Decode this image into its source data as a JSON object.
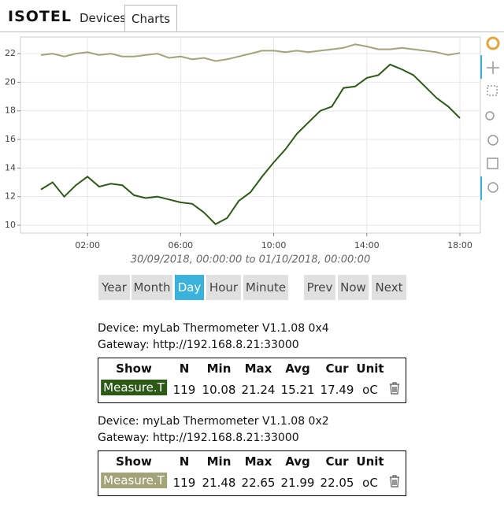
{
  "header": {
    "logo": "ISOTEL",
    "tabs": [
      "Devices",
      "Charts"
    ],
    "active_tab": 1
  },
  "chart_data": {
    "type": "line",
    "subtitle": "30/09/2018, 00:00:00 to 01/10/2018, 00:00:00",
    "x": [
      0,
      0.5,
      1,
      1.5,
      2,
      2.5,
      3,
      3.5,
      4,
      4.5,
      5,
      5.5,
      6,
      6.5,
      7,
      7.5,
      8,
      8.5,
      9,
      9.5,
      10,
      10.5,
      11,
      11.5,
      12,
      12.5,
      13,
      13.5,
      14,
      14.5,
      15,
      15.5,
      16,
      16.5,
      17,
      17.5,
      18
    ],
    "series": [
      {
        "color": "#2c5a16",
        "values": [
          12.5,
          13.0,
          12.0,
          12.8,
          13.4,
          12.7,
          12.9,
          12.8,
          12.1,
          11.9,
          12.0,
          11.8,
          11.6,
          11.5,
          10.9,
          10.08,
          10.5,
          11.7,
          12.3,
          13.4,
          14.4,
          15.3,
          16.4,
          17.2,
          18.0,
          18.3,
          19.6,
          19.7,
          20.3,
          20.5,
          21.24,
          20.9,
          20.5,
          19.7,
          18.9,
          18.3,
          17.49
        ]
      },
      {
        "color": "#a3a37a",
        "values": [
          21.9,
          22.0,
          21.8,
          22.0,
          22.1,
          21.9,
          22.0,
          21.8,
          21.8,
          21.9,
          22.0,
          21.7,
          21.8,
          21.6,
          21.7,
          21.48,
          21.6,
          21.8,
          22.0,
          22.2,
          22.2,
          22.1,
          22.2,
          22.1,
          22.2,
          22.3,
          22.4,
          22.65,
          22.5,
          22.3,
          22.3,
          22.4,
          22.3,
          22.2,
          22.1,
          21.9,
          22.05
        ]
      }
    ],
    "xlim": [
      -0.88,
      18.88
    ],
    "xticks": [
      {
        "value": 2,
        "label": "02:00"
      },
      {
        "value": 6,
        "label": "06:00"
      },
      {
        "value": 10,
        "label": "10:00"
      },
      {
        "value": 14,
        "label": "14:00"
      },
      {
        "value": 18,
        "label": "18:00"
      }
    ],
    "ylim": [
      9.45,
      23.16
    ],
    "yticks": [
      10,
      12,
      14,
      16,
      18,
      20,
      22
    ],
    "grid": true
  },
  "range_buttons": [
    "Year",
    "Month",
    "Day",
    "Hour",
    "Minute"
  ],
  "active_range": 2,
  "nav_buttons": [
    "Prev",
    "Now",
    "Next"
  ],
  "devices": [
    {
      "device": "Device: myLab Thermometer V1.1.08 0x4",
      "gateway": "Gateway: http://192.168.8.21:33000",
      "columns": [
        "Show",
        "N",
        "Min",
        "Max",
        "Avg",
        "Cur",
        "Unit"
      ],
      "row": [
        "Measure.T",
        119,
        10.08,
        21.24,
        15.21,
        17.49,
        "oC"
      ]
    },
    {
      "device": "Device: myLab Thermometer V1.1.08 0x2",
      "gateway": "Gateway: http://192.168.8.21:33000",
      "columns": [
        "Show",
        "N",
        "Min",
        "Max",
        "Avg",
        "Cur",
        "Unit"
      ],
      "row": [
        "Measure.T",
        119,
        21.48,
        22.65,
        21.99,
        22.05,
        "oC"
      ]
    }
  ]
}
